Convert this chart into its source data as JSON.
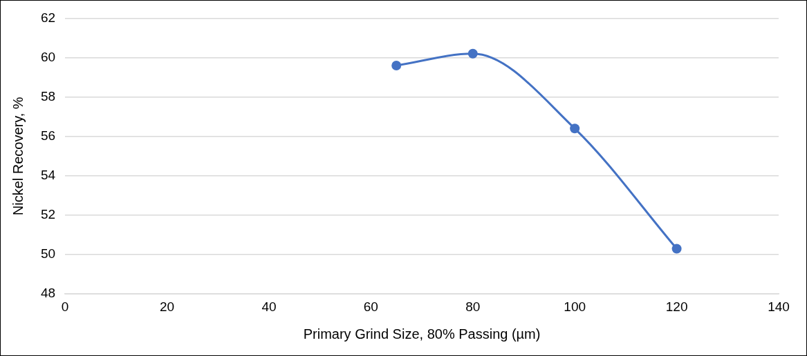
{
  "chart_data": {
    "type": "line",
    "xlabel": "Primary Grind Size, 80% Passing (µm)",
    "ylabel": "Nickel Recovery, %",
    "x": [
      65,
      80,
      100,
      120
    ],
    "series": [
      {
        "color": "#4472c4",
        "values": [
          59.6,
          60.2,
          56.4,
          50.3
        ]
      }
    ],
    "xlim": [
      0,
      140
    ],
    "xticks": [
      0,
      20,
      40,
      60,
      80,
      100,
      120,
      140
    ],
    "ylim": [
      48,
      62
    ],
    "yticks": [
      48,
      50,
      52,
      54,
      56,
      58,
      60,
      62
    ],
    "grid": "y",
    "legend": false,
    "marker": "circle",
    "line_style": "solid"
  }
}
